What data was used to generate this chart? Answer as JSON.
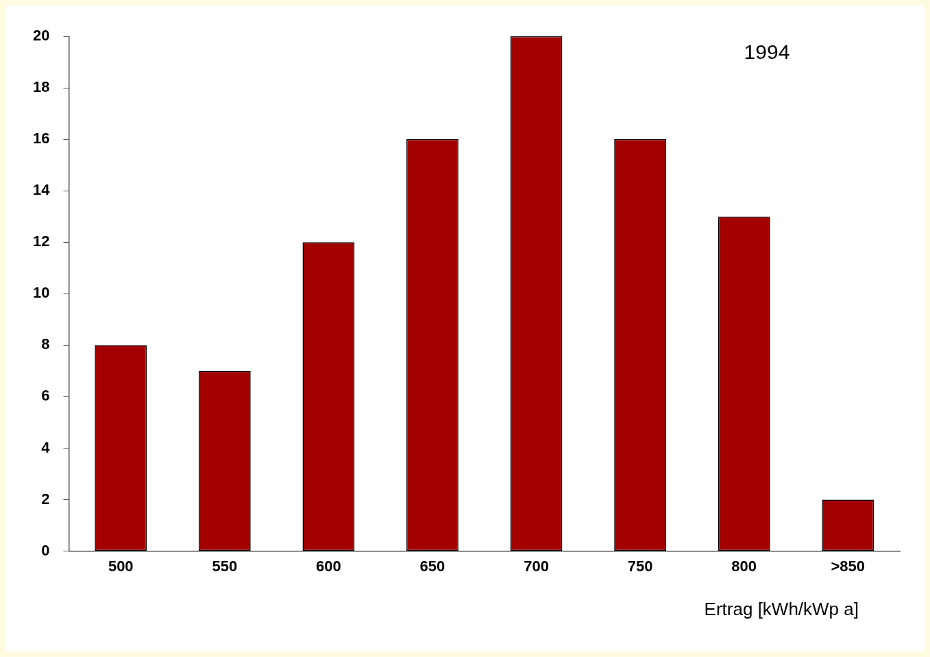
{
  "chart_data": {
    "type": "bar",
    "xlabel": "Ertrag [kWh/kWp a]",
    "annotations": [
      "1994"
    ],
    "categories": [
      "500",
      "550",
      "600",
      "650",
      "700",
      "750",
      "800",
      ">850"
    ],
    "values": [
      8,
      7,
      12,
      16,
      20,
      16,
      13,
      2
    ],
    "color": "#a50000",
    "ylim": [
      0,
      20
    ],
    "yticks": [
      0,
      2,
      4,
      6,
      8,
      10,
      12,
      14,
      16,
      18,
      20
    ],
    "grid": false,
    "legend": false
  }
}
